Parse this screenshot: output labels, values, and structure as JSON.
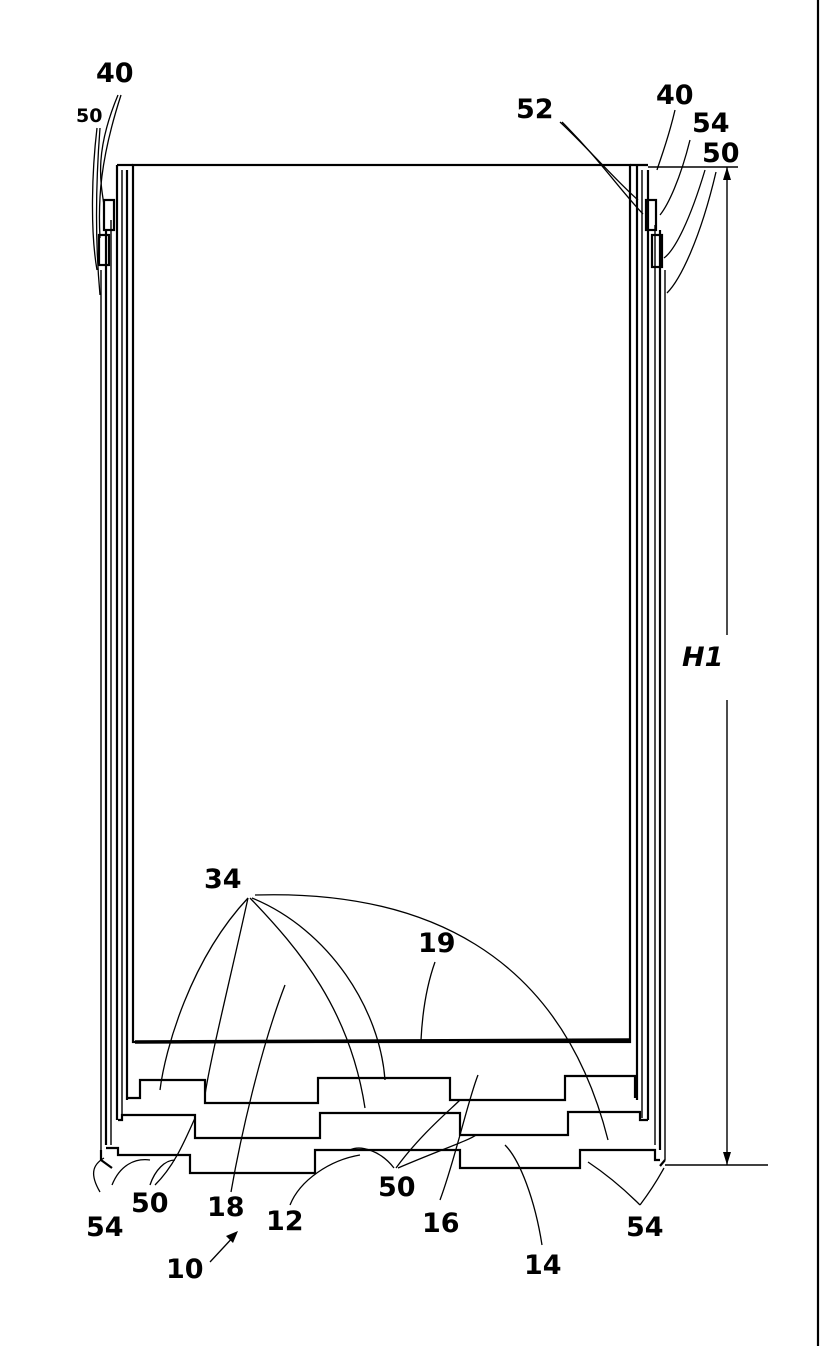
{
  "figure": {
    "labels": {
      "l40_left": "40",
      "l50_left_top": "50",
      "l52": "52",
      "l40_right": "40",
      "l54_right_top": "54",
      "l50_right_top": "50",
      "h1": "H1",
      "l34": "34",
      "l19": "19",
      "l54_left_bottom": "54",
      "l50_left_bottom": "50",
      "l18": "18",
      "l12": "12",
      "l50_mid_bottom": "50",
      "l16": "16",
      "l14": "14",
      "l54_right_bottom": "54",
      "l10": "10"
    }
  }
}
